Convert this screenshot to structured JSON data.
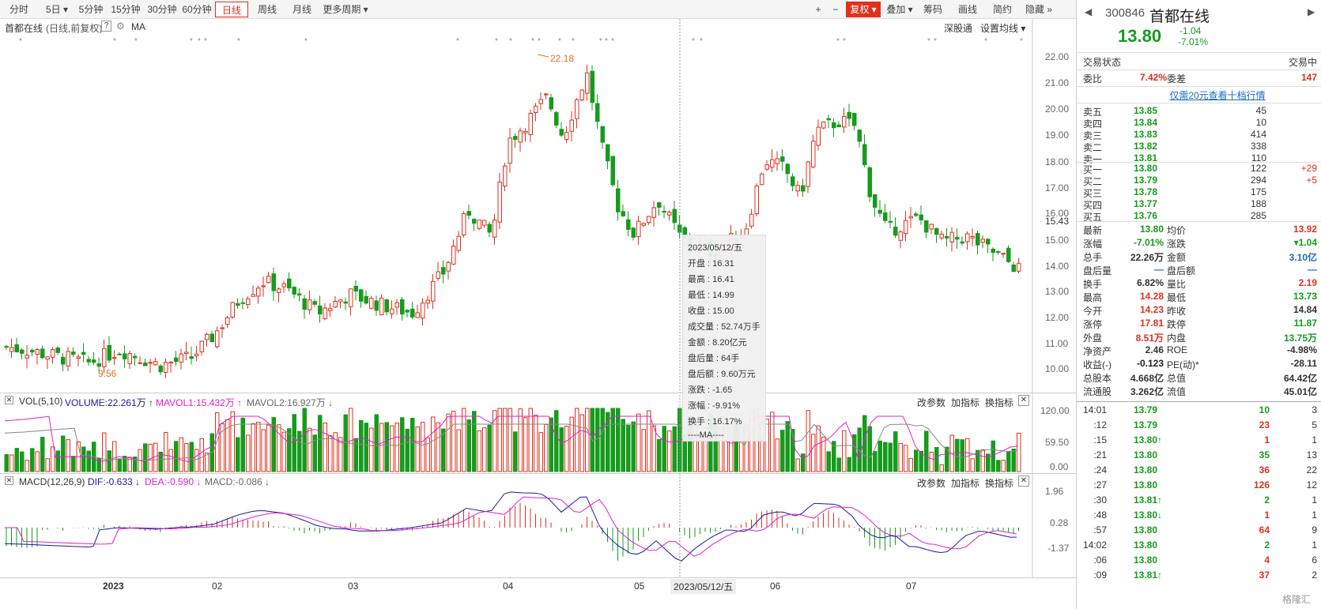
{
  "toolbar": {
    "left": [
      "分时",
      "5日 ▾",
      "5分钟",
      "15分钟",
      "30分钟",
      "60分钟",
      "日线",
      "周线",
      "月线",
      "更多周期 ▾"
    ],
    "right": [
      "+",
      "−",
      "复权 ▾",
      "叠加 ▾",
      "筹码",
      "画线",
      "简约",
      "隐藏 »"
    ]
  },
  "header": {
    "name": "首都在线",
    "mode": "(日线,前复权)",
    "q": "?",
    "ma": "MA",
    "right1": "深股通",
    "right2": "设置均线 ▾"
  },
  "price_axis": [
    "22.00",
    "21.00",
    "20.00",
    "19.00",
    "18.00",
    "17.00",
    "16.00",
    "15.43",
    "15.00",
    "14.00",
    "13.00",
    "12.00",
    "11.00",
    "10.00"
  ],
  "hi_label": "22.18",
  "lo_label": "9.56",
  "vol": {
    "title": "VOL(5,10)",
    "volume": "VOLUME:22.261万 ↑",
    "mavol1": "MAVOL1:15.432万 ↑",
    "mavol2": "MAVOL2:16.927万 ↓",
    "btns": [
      "改参数",
      "加指标",
      "换指标"
    ],
    "axis": [
      "120.00",
      "59.50",
      "0.00"
    ]
  },
  "macd": {
    "title": "MACD(12,26,9)",
    "dif": "DIF:-0.633 ↓",
    "dea": "DEA:-0.590 ↓",
    "macd": "MACD:-0.086 ↓",
    "btns": [
      "改参数",
      "加指标",
      "换指标"
    ],
    "axis": [
      "1.96",
      "0.28",
      "-1.37"
    ]
  },
  "x_axis": [
    "2023",
    "02",
    "03",
    "04",
    "05",
    "2023/05/12/五",
    "06",
    "07"
  ],
  "tooltip": [
    "2023/05/12/五",
    "开盘 : 16.31",
    "最高 : 16.41",
    "最低 : 14.99",
    "收盘 : 15.00",
    "成交量 : 52.74万手",
    "金额 : 8.20亿元",
    "盘后量 : 64手",
    "盘后额 : 9.60万元",
    "涨跌 : -1.65",
    "涨幅 : -9.91%",
    "换手 : 16.17%",
    "----MA----"
  ],
  "quote": {
    "code": "300846",
    "name": "首都在线",
    "price": "13.80",
    "chg": "-1.04",
    "pct": "-7.01%"
  },
  "status": {
    "label": "交易状态",
    "value": "交易中"
  },
  "ratio": {
    "wb_l": "委比",
    "wb_v": "7.42%",
    "wc_l": "委差",
    "wc_v": "147"
  },
  "promo": "仅需20元查看十档行情",
  "sell": [
    [
      "卖五",
      "13.85",
      "45"
    ],
    [
      "卖四",
      "13.84",
      "10"
    ],
    [
      "卖三",
      "13.83",
      "414"
    ],
    [
      "卖二",
      "13.82",
      "338"
    ],
    [
      "卖一",
      "13.81",
      "110"
    ]
  ],
  "buy": [
    [
      "买一",
      "13.80",
      "122",
      "+29"
    ],
    [
      "买二",
      "13.79",
      "294",
      "+5"
    ],
    [
      "买三",
      "13.78",
      "175",
      ""
    ],
    [
      "买四",
      "13.77",
      "188",
      ""
    ],
    [
      "买五",
      "13.76",
      "285",
      ""
    ]
  ],
  "stats": [
    [
      "最新",
      "13.80",
      "均价",
      "13.92"
    ],
    [
      "涨幅",
      "-7.01%",
      "涨跌",
      "▾1.04"
    ],
    [
      "总手",
      "22.26万",
      "金额",
      "3.10亿"
    ],
    [
      "盘后量",
      "—",
      "盘后额",
      "—"
    ],
    [
      "换手",
      "6.82%",
      "量比",
      "2.19"
    ],
    [
      "最高",
      "14.28",
      "最低",
      "13.73"
    ],
    [
      "今开",
      "14.23",
      "昨收",
      "14.84"
    ],
    [
      "涨停",
      "17.81",
      "跌停",
      "11.87"
    ],
    [
      "外盘",
      "8.51万",
      "内盘",
      "13.75万"
    ],
    [
      "净资产",
      "2.46",
      "ROE",
      "-4.98%"
    ],
    [
      "收益(-)",
      "-0.123",
      "PE(动)*",
      "-28.11"
    ],
    [
      "总股本",
      "4.668亿",
      "总值",
      "64.42亿"
    ],
    [
      "流通股",
      "3.262亿",
      "流值",
      "45.01亿"
    ]
  ],
  "ticks": [
    [
      "14:01",
      "13.79",
      "10",
      "3"
    ],
    [
      ":12",
      "13.79",
      "23",
      "5"
    ],
    [
      ":15",
      "13.80↑",
      "1",
      "1"
    ],
    [
      ":21",
      "13.80",
      "35",
      "13"
    ],
    [
      ":24",
      "13.80",
      "36",
      "22"
    ],
    [
      ":27",
      "13.80",
      "126",
      "12"
    ],
    [
      ":30",
      "13.81↑",
      "2",
      "1"
    ],
    [
      ":48",
      "13.80↓",
      "1",
      "1"
    ],
    [
      ":57",
      "13.80",
      "64",
      "9"
    ],
    [
      "14:02",
      "13.80",
      "2",
      "1"
    ],
    [
      ":06",
      "13.80",
      "4",
      "6"
    ],
    [
      ":09",
      "13.81↑",
      "37",
      "2"
    ]
  ],
  "watermark": "格隆汇",
  "chart_data": {
    "type": "candlestick",
    "title": "首都在线",
    "price_range": [
      9.5,
      22.5
    ],
    "high": 22.18,
    "low": 9.56,
    "selected_date": "2023/05/12/五",
    "months": [
      "2023",
      "02",
      "03",
      "04",
      "05",
      "06",
      "07"
    ]
  },
  "colors": {
    "up": "#e0301e",
    "down": "#169b1c"
  }
}
